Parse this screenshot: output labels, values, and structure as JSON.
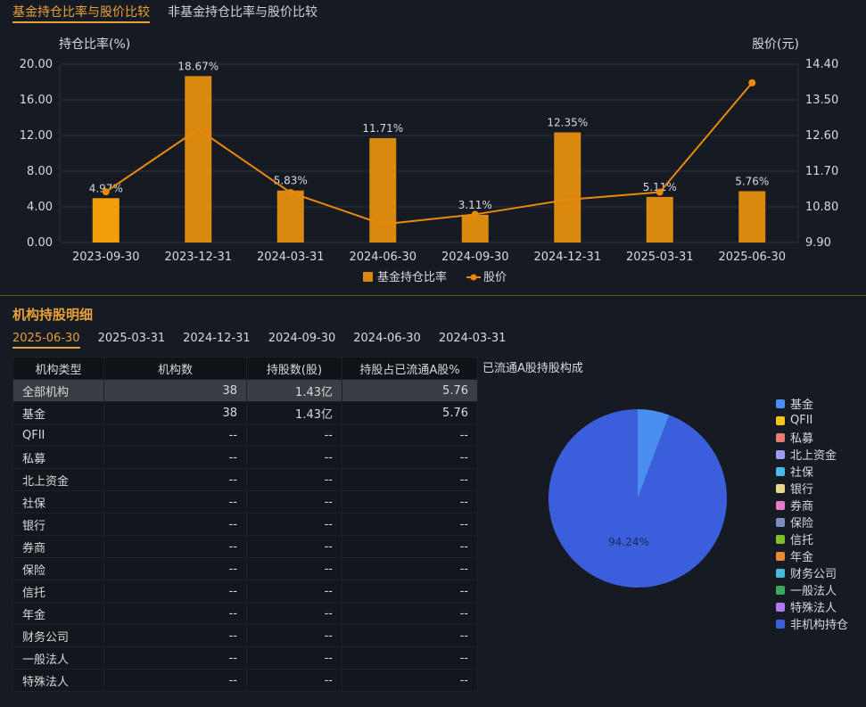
{
  "tabs": {
    "items": [
      "基金持仓比率与股价比较",
      "非基金持仓比率与股价比较"
    ],
    "active": 0
  },
  "chart_data": {
    "type": "bar",
    "categories": [
      "2023-09-30",
      "2023-12-31",
      "2024-03-31",
      "2024-06-30",
      "2024-09-30",
      "2024-12-31",
      "2025-03-31",
      "2025-06-30"
    ],
    "series": [
      {
        "name": "基金持仓比率",
        "type": "bar",
        "axis": "left",
        "values": [
          4.97,
          18.67,
          5.83,
          11.71,
          3.11,
          12.35,
          5.11,
          5.76
        ],
        "labels": [
          "4.97%",
          "18.67%",
          "5.83%",
          "11.71%",
          "3.11%",
          "12.35%",
          "5.11%",
          "5.76%"
        ]
      },
      {
        "name": "股价",
        "type": "line",
        "axis": "right",
        "values": [
          11.18,
          12.76,
          11.16,
          10.36,
          10.61,
          10.98,
          11.17,
          13.93
        ]
      }
    ],
    "ylabel": "持仓比率(%)",
    "y2label": "股价(元)",
    "ylim": [
      0,
      20
    ],
    "y2lim": [
      9.9,
      14.4
    ],
    "yticks": [
      "0.00",
      "4.00",
      "8.00",
      "12.00",
      "16.00",
      "20.00"
    ],
    "y2ticks": [
      "9.90",
      "10.80",
      "11.70",
      "12.60",
      "13.50",
      "14.40"
    ],
    "grid": true,
    "legend": "bottom",
    "colors": {
      "bar": "#d98a0e",
      "bar_active": "#f59e0b",
      "line": "#e8890c"
    }
  },
  "section_title": "机构持股明细",
  "date_tabs": {
    "items": [
      "2025-06-30",
      "2025-03-31",
      "2024-12-31",
      "2024-09-30",
      "2024-06-30",
      "2024-03-31"
    ],
    "active": 0
  },
  "table": {
    "headers": [
      "机构类型",
      "机构数",
      "持股数(股)",
      "持股占已流通A股%"
    ],
    "rows": [
      [
        "全部机构",
        "38",
        "1.43亿",
        "5.76"
      ],
      [
        "基金",
        "38",
        "1.43亿",
        "5.76"
      ],
      [
        "QFII",
        "--",
        "--",
        "--"
      ],
      [
        "私募",
        "--",
        "--",
        "--"
      ],
      [
        "北上资金",
        "--",
        "--",
        "--"
      ],
      [
        "社保",
        "--",
        "--",
        "--"
      ],
      [
        "银行",
        "--",
        "--",
        "--"
      ],
      [
        "券商",
        "--",
        "--",
        "--"
      ],
      [
        "保险",
        "--",
        "--",
        "--"
      ],
      [
        "信托",
        "--",
        "--",
        "--"
      ],
      [
        "年金",
        "--",
        "--",
        "--"
      ],
      [
        "财务公司",
        "--",
        "--",
        "--"
      ],
      [
        "一般法人",
        "--",
        "--",
        "--"
      ],
      [
        "特殊法人",
        "--",
        "--",
        "--"
      ]
    ]
  },
  "pie": {
    "title": "已流通A股持股构成",
    "label": "94.24%",
    "slices": [
      {
        "name": "基金",
        "value": 5.76,
        "color": "#4a8ff0"
      },
      {
        "name": "非机构持仓",
        "value": 94.24,
        "color": "#3b5fdc"
      }
    ],
    "legend": [
      {
        "name": "基金",
        "color": "#4a8ff0"
      },
      {
        "name": "QFII",
        "color": "#f5c518"
      },
      {
        "name": "私募",
        "color": "#e87a7a"
      },
      {
        "name": "北上资金",
        "color": "#9b9cf0"
      },
      {
        "name": "社保",
        "color": "#4bb8e8"
      },
      {
        "name": "银行",
        "color": "#e8d68a"
      },
      {
        "name": "券商",
        "color": "#e07cc8"
      },
      {
        "name": "保险",
        "color": "#7f8cc0"
      },
      {
        "name": "信托",
        "color": "#7cc22a"
      },
      {
        "name": "年金",
        "color": "#e8883a"
      },
      {
        "name": "财务公司",
        "color": "#4ab8d8"
      },
      {
        "name": "一般法人",
        "color": "#3aa860"
      },
      {
        "name": "特殊法人",
        "color": "#b07af0"
      },
      {
        "name": "非机构持仓",
        "color": "#3b5fdc"
      }
    ]
  }
}
